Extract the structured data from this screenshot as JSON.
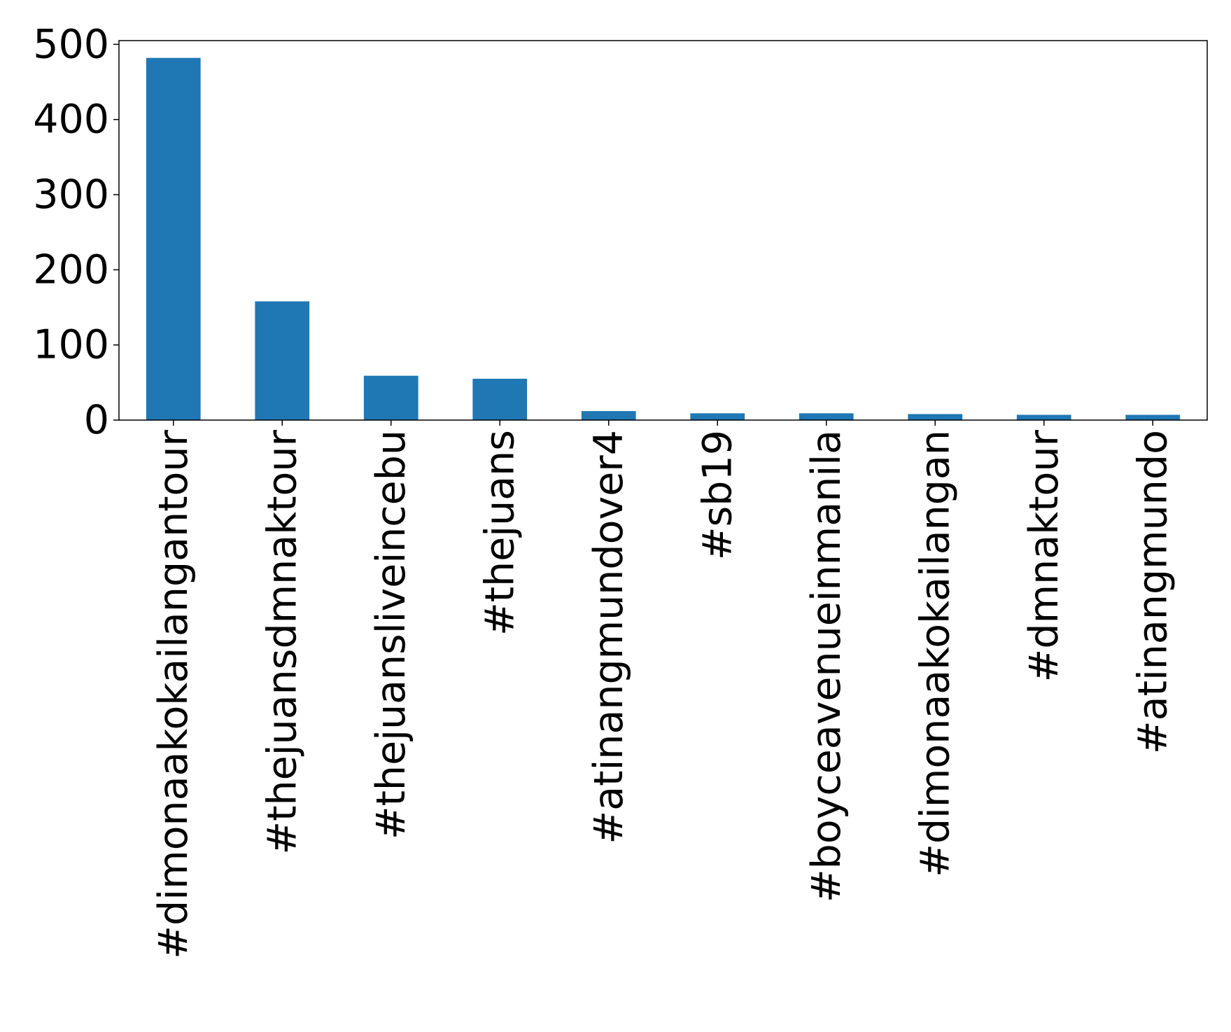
{
  "chart_data": {
    "type": "bar",
    "title": "",
    "xlabel": "",
    "ylabel": "",
    "categories": [
      "#dimonaakokailangantour",
      "#thejuansdmnaktour",
      "#thejuansliveincebu",
      "#thejuans",
      "#atinangmundover4",
      "#sb19",
      "#boyceavenueinmanila",
      "#dimonaakokailangan",
      "#dmnaktour",
      "#atinangmundo"
    ],
    "values": [
      482,
      158,
      59,
      55,
      12,
      9,
      9,
      8,
      7,
      7
    ],
    "ylim": [
      0,
      505
    ],
    "yticks": [
      0,
      100,
      200,
      300,
      400,
      500
    ],
    "grid": false,
    "legend": "none",
    "bar_color": "#1f77b4"
  }
}
